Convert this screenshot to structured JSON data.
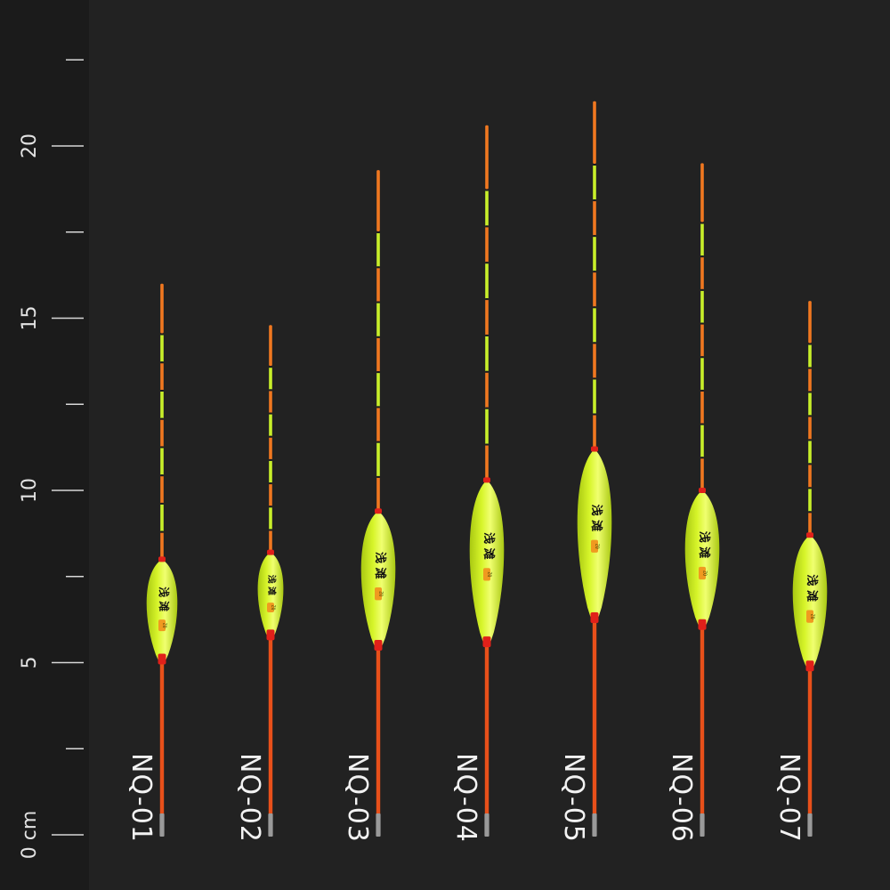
{
  "ruler": {
    "unit": "cm",
    "zero_label": "0 cm",
    "labeled_ticks": [
      {
        "value": 0,
        "label": "0 cm"
      },
      {
        "value": 5,
        "label": "5"
      },
      {
        "value": 10,
        "label": "10"
      },
      {
        "value": 15,
        "label": "15"
      },
      {
        "value": 20,
        "label": "20"
      }
    ],
    "minor_ticks": [
      2.5,
      7.5,
      12.5,
      17.5,
      22.5
    ]
  },
  "body_text": {
    "main": "浅 滩",
    "badge": "ZQ"
  },
  "colors": {
    "background": "#222222",
    "ruler_strip": "#1b1b1b",
    "body": "#d7f52a",
    "body_shade": "#a9c812",
    "stem": "#e8501a",
    "tip_orange": "#f07820",
    "tip_yellow": "#c8ef2a",
    "tip_dark": "#1a1a1a",
    "collar": "#e0201a",
    "base": "#9a9a9a"
  },
  "floats": [
    {
      "model": "NQ-01",
      "tip_top": 16.0,
      "body_top": 8.0,
      "body_bottom": 5.0,
      "stem_bottom": 0.0
    },
    {
      "model": "NQ-02",
      "tip_top": 14.8,
      "body_top": 8.2,
      "body_bottom": 5.7,
      "stem_bottom": 0.0
    },
    {
      "model": "NQ-03",
      "tip_top": 19.3,
      "body_top": 9.4,
      "body_bottom": 5.4,
      "stem_bottom": 0.0
    },
    {
      "model": "NQ-04",
      "tip_top": 20.6,
      "body_top": 10.3,
      "body_bottom": 5.5,
      "stem_bottom": 0.0
    },
    {
      "model": "NQ-05",
      "tip_top": 21.3,
      "body_top": 11.2,
      "body_bottom": 6.2,
      "stem_bottom": 0.0
    },
    {
      "model": "NQ-06",
      "tip_top": 19.5,
      "body_top": 10.0,
      "body_bottom": 6.0,
      "stem_bottom": 0.0
    },
    {
      "model": "NQ-07",
      "tip_top": 15.5,
      "body_top": 8.7,
      "body_bottom": 4.8,
      "stem_bottom": 0.0
    }
  ]
}
